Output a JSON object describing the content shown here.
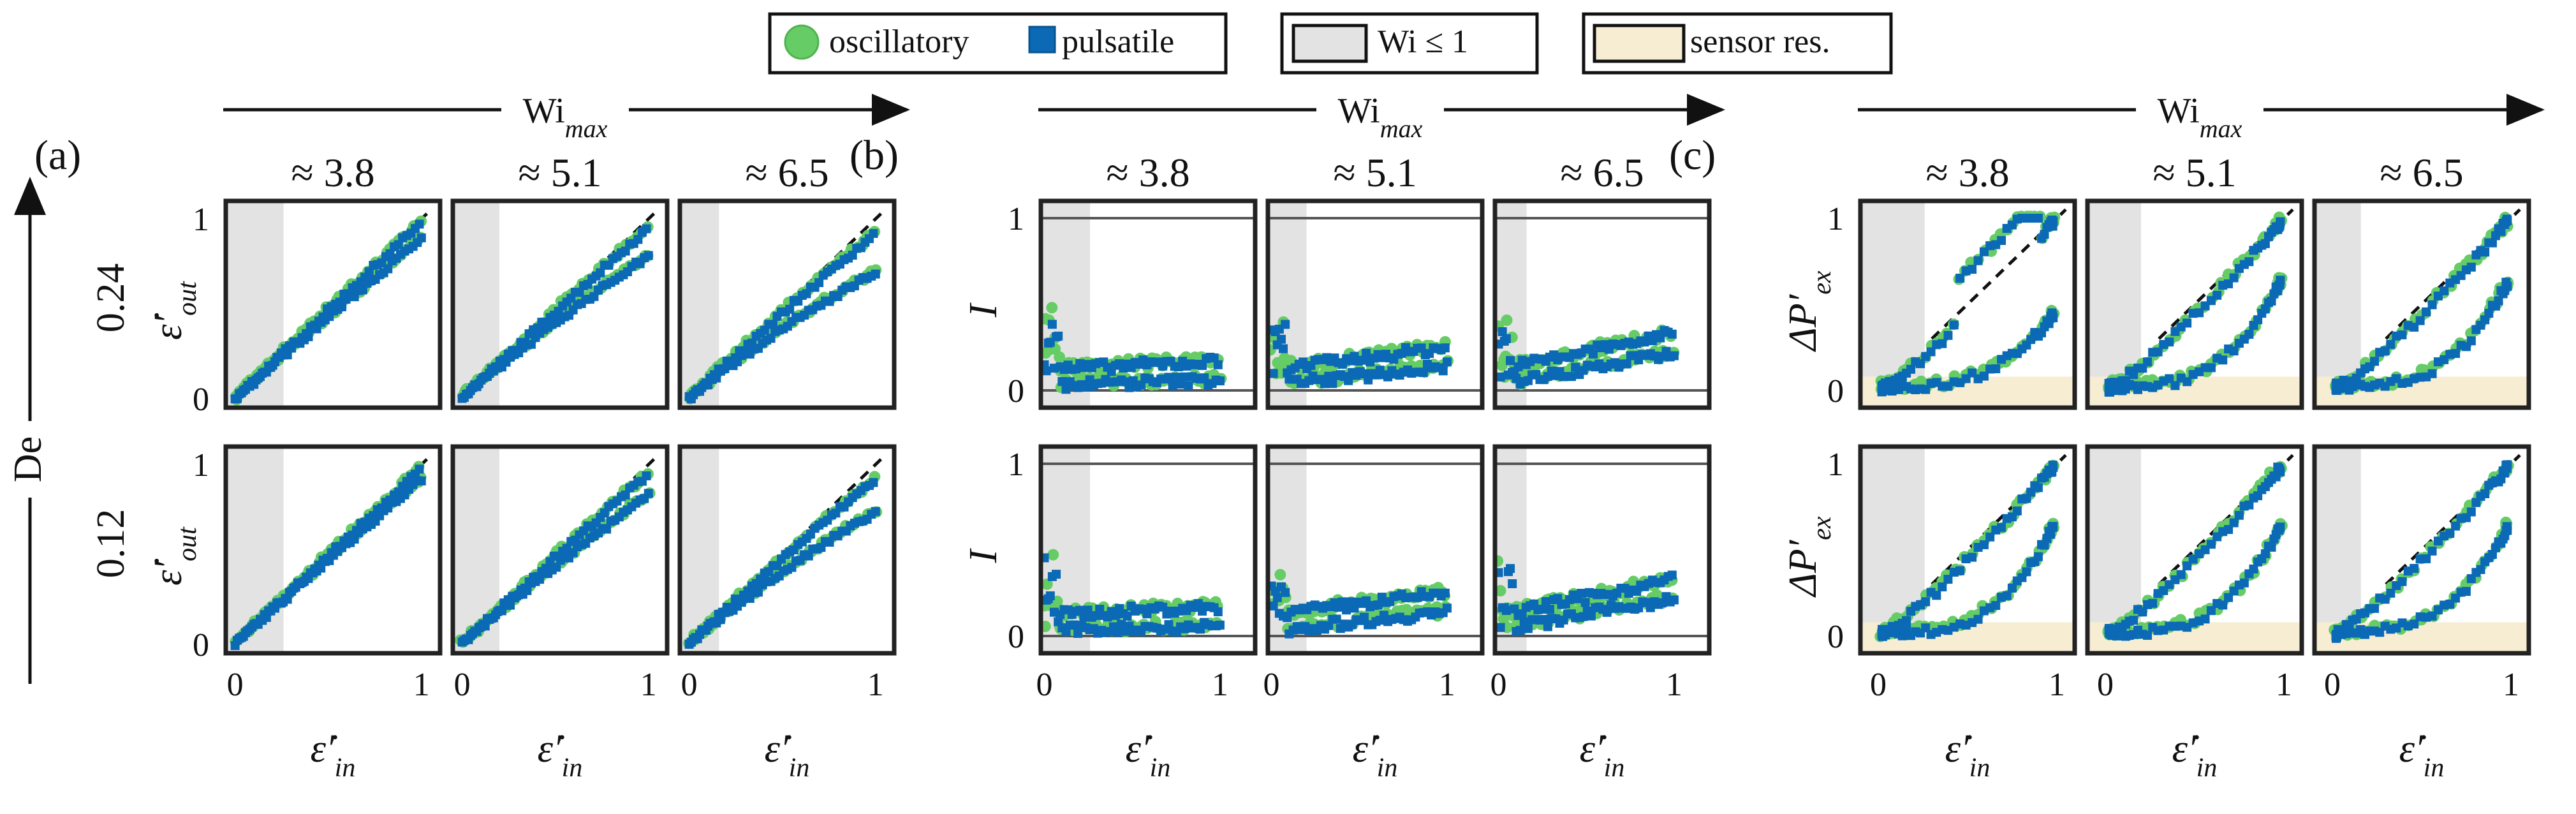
{
  "legend": {
    "oscillatory": "oscillatory",
    "pulsatile": "pulsatile",
    "wi_le_1": "Wi ≤ 1",
    "sensor": "sensor res."
  },
  "axes": {
    "wi_max_label": "Wi",
    "wi_max_sub": "max",
    "de_label": "De",
    "x_label_main": "ε̇′",
    "x_label_sub": "in"
  },
  "colors": {
    "oscillatory": "#66cc66",
    "pulsatile": "#0b69b5",
    "wi_shade": "#e3e3e3",
    "sensor_shade": "#f7edd3"
  },
  "chart_data": [
    {
      "type": "scatter",
      "panel_label": "(a)",
      "ylabel_main": "ε̇′",
      "ylabel_sub": "out",
      "columns": [
        "≈ 3.8",
        "≈ 5.1",
        "≈ 6.5"
      ],
      "rows": [
        "0.24",
        "0.12"
      ],
      "wi_max": [
        3.8,
        5.1,
        6.5
      ],
      "de": [
        0.24,
        0.12
      ],
      "xlim": [
        -0.05,
        1.1
      ],
      "ylim": [
        -0.05,
        1.1
      ],
      "xticks": [
        "0",
        "1"
      ],
      "yticks": [
        "0",
        "1"
      ],
      "wi_shade_xmax": [
        0.26,
        0.2,
        0.16
      ],
      "reference_line": "y = x (dashed)",
      "series": [
        "oscillatory",
        "pulsatile"
      ]
    },
    {
      "type": "scatter",
      "panel_label": "(b)",
      "ylabel_main": "I",
      "ylabel_sub": "",
      "columns": [
        "≈ 3.8",
        "≈ 5.1",
        "≈ 6.5"
      ],
      "rows": [
        "0.24",
        "0.12"
      ],
      "wi_max": [
        3.8,
        5.1,
        6.5
      ],
      "de": [
        0.24,
        0.12
      ],
      "xlim": [
        -0.02,
        1.2
      ],
      "ylim": [
        -0.1,
        1.1
      ],
      "xticks": [
        "0",
        "1"
      ],
      "yticks": [
        "0",
        "1"
      ],
      "wi_shade_xmax": [
        0.26,
        0.2,
        0.16
      ],
      "reference_lines": [
        0,
        1
      ],
      "series": [
        "oscillatory",
        "pulsatile"
      ]
    },
    {
      "type": "scatter",
      "panel_label": "(c)",
      "ylabel_main": "ΔP′",
      "ylabel_sub": "ex",
      "columns": [
        "≈ 3.8",
        "≈ 5.1",
        "≈ 6.5"
      ],
      "rows": [
        "0.24",
        "0.12"
      ],
      "wi_max": [
        3.8,
        5.1,
        6.5
      ],
      "de": [
        0.24,
        0.12
      ],
      "xlim": [
        -0.1,
        1.1
      ],
      "ylim": [
        -0.1,
        1.1
      ],
      "xticks": [
        "0",
        "1"
      ],
      "yticks": [
        "0",
        "1"
      ],
      "wi_shade_xmax": [
        0.26,
        0.2,
        0.16
      ],
      "sensor_resolution_ymax": 0.08,
      "reference_line": "y = x (dashed)",
      "series": [
        "oscillatory",
        "pulsatile"
      ]
    }
  ]
}
